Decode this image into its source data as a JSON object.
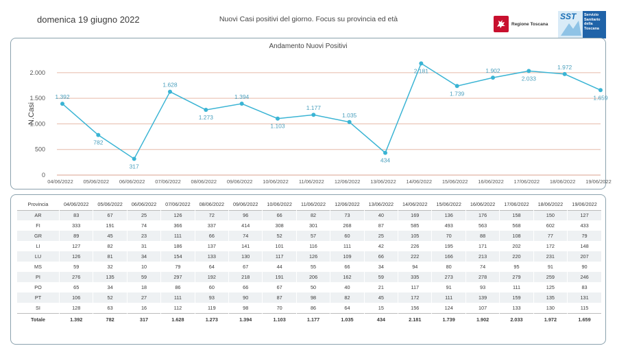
{
  "header": {
    "date": "domenica 19 giugno 2022",
    "title": "Nuovi Casi positivi del giorno. Focus su provincia ed età",
    "logo_rt_text": "Regione Toscana",
    "logo_sst_badge": "SST",
    "logo_sst_text": "Servizio Sanitario della Toscana"
  },
  "chart_data": {
    "type": "line",
    "title": "Andamento Nuovi Positivi",
    "ylabel": "N.Casi",
    "xlabel": "",
    "ylim": [
      0,
      2400
    ],
    "yticks": [
      0,
      500,
      1000,
      1500,
      2000
    ],
    "ytick_labels": [
      "0",
      "500",
      "1.000",
      "1.500",
      "2.000"
    ],
    "grid": true,
    "categories": [
      "04/06/2022",
      "05/06/2022",
      "06/06/2022",
      "07/06/2022",
      "08/06/2022",
      "09/06/2022",
      "10/06/2022",
      "11/06/2022",
      "12/06/2022",
      "13/06/2022",
      "14/06/2022",
      "15/06/2022",
      "16/06/2022",
      "17/06/2022",
      "18/06/2022",
      "19/06/2022"
    ],
    "values": [
      1392,
      782,
      317,
      1628,
      1273,
      1394,
      1103,
      1177,
      1035,
      434,
      2181,
      1739,
      1902,
      2033,
      1972,
      1659
    ],
    "value_labels": [
      "1.392",
      "782",
      "317",
      "1.628",
      "1.273",
      "1.394",
      "1.103",
      "1.177",
      "1.035",
      "434",
      "2.181",
      "1.739",
      "1.902",
      "2.033",
      "1.972",
      "1.659"
    ],
    "label_position": [
      "above",
      "below",
      "below",
      "above",
      "below",
      "above",
      "below",
      "above",
      "above",
      "below",
      "below",
      "below",
      "above",
      "below",
      "above",
      "below"
    ],
    "line_color": "#3ab4d4",
    "grid_color": "#e6b9a8"
  },
  "table": {
    "header_label": "Provincia",
    "dates": [
      "04/06/2022",
      "05/06/2022",
      "06/06/2022",
      "07/06/2022",
      "08/06/2022",
      "09/06/2022",
      "10/06/2022",
      "11/06/2022",
      "12/06/2022",
      "13/06/2022",
      "14/06/2022",
      "15/06/2022",
      "16/06/2022",
      "17/06/2022",
      "18/06/2022",
      "19/06/2022"
    ],
    "rows": [
      {
        "name": "AR",
        "values": [
          "83",
          "67",
          "25",
          "126",
          "72",
          "96",
          "66",
          "82",
          "73",
          "40",
          "169",
          "136",
          "176",
          "158",
          "150",
          "127"
        ]
      },
      {
        "name": "FI",
        "values": [
          "333",
          "191",
          "74",
          "366",
          "337",
          "414",
          "308",
          "301",
          "268",
          "87",
          "585",
          "493",
          "563",
          "568",
          "602",
          "433"
        ]
      },
      {
        "name": "GR",
        "values": [
          "89",
          "45",
          "23",
          "111",
          "66",
          "74",
          "52",
          "57",
          "60",
          "25",
          "105",
          "70",
          "88",
          "108",
          "77",
          "79"
        ]
      },
      {
        "name": "LI",
        "values": [
          "127",
          "82",
          "31",
          "186",
          "137",
          "141",
          "101",
          "116",
          "111",
          "42",
          "226",
          "195",
          "171",
          "202",
          "172",
          "148"
        ]
      },
      {
        "name": "LU",
        "values": [
          "126",
          "81",
          "34",
          "154",
          "133",
          "130",
          "117",
          "126",
          "109",
          "66",
          "222",
          "166",
          "213",
          "220",
          "231",
          "207"
        ]
      },
      {
        "name": "MS",
        "values": [
          "59",
          "32",
          "10",
          "79",
          "64",
          "67",
          "44",
          "55",
          "66",
          "34",
          "94",
          "80",
          "74",
          "95",
          "91",
          "90"
        ]
      },
      {
        "name": "PI",
        "values": [
          "276",
          "135",
          "59",
          "297",
          "192",
          "218",
          "191",
          "206",
          "162",
          "59",
          "335",
          "273",
          "278",
          "279",
          "259",
          "246"
        ]
      },
      {
        "name": "PO",
        "values": [
          "65",
          "34",
          "18",
          "86",
          "60",
          "66",
          "67",
          "50",
          "40",
          "21",
          "117",
          "91",
          "93",
          "111",
          "125",
          "83"
        ]
      },
      {
        "name": "PT",
        "values": [
          "106",
          "52",
          "27",
          "111",
          "93",
          "90",
          "87",
          "98",
          "82",
          "45",
          "172",
          "111",
          "139",
          "159",
          "135",
          "131"
        ]
      },
      {
        "name": "SI",
        "values": [
          "128",
          "63",
          "16",
          "112",
          "119",
          "98",
          "70",
          "86",
          "64",
          "15",
          "156",
          "124",
          "107",
          "133",
          "130",
          "115"
        ]
      }
    ],
    "total": {
      "name": "Totale",
      "values": [
        "1.392",
        "782",
        "317",
        "1.628",
        "1.273",
        "1.394",
        "1.103",
        "1.177",
        "1.035",
        "434",
        "2.181",
        "1.739",
        "1.902",
        "2.033",
        "1.972",
        "1.659"
      ]
    }
  }
}
